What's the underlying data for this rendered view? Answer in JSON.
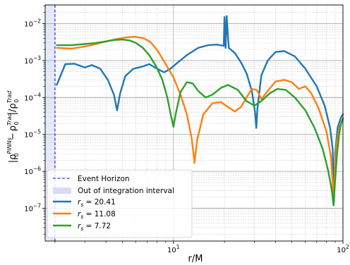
{
  "chart_data": {
    "type": "line",
    "xlabel": "r/M",
    "ylabel": "|ρ0PINNs − ρ0Trad|/ρ0Trad",
    "ylabel_parts": {
      "rho": "ρ",
      "sub": "0",
      "sup_pinn": "PINNs",
      "sup_trad": "Trad",
      "minus": "−"
    },
    "x_scale": "log",
    "y_scale": "log",
    "xlim": [
      1.75,
      100
    ],
    "ylim": [
      1.3e-08,
      0.032
    ],
    "grid": true,
    "legend_position": "lower-left",
    "x_ticks": [
      {
        "value": 10,
        "base": "10",
        "exp": "1"
      },
      {
        "value": 100,
        "base": "10",
        "exp": "2"
      }
    ],
    "y_ticks": [
      {
        "value": 1e-07,
        "base": "10",
        "exp": "−7"
      },
      {
        "value": 1e-06,
        "base": "10",
        "exp": "−6"
      },
      {
        "value": 1e-05,
        "base": "10",
        "exp": "−5"
      },
      {
        "value": 0.0001,
        "base": "10",
        "exp": "−4"
      },
      {
        "value": 0.001,
        "base": "10",
        "exp": "−3"
      },
      {
        "value": 0.01,
        "base": "10",
        "exp": "−2"
      }
    ],
    "event_horizon": {
      "x": 2.0,
      "label": "Event Horizon",
      "color": "#0000ff"
    },
    "integration_band": {
      "label": "Out of integration interval",
      "color": "#d6dcf5"
    },
    "series": [
      {
        "name": "20.41",
        "legend_prefix": "r",
        "legend_sub": "s",
        "legend_eq": " = ",
        "color": "#1f77b4",
        "points": [
          [
            2.05,
            0.00022
          ],
          [
            2.3,
            0.0008
          ],
          [
            2.6,
            0.00082
          ],
          [
            3.0,
            0.00065
          ],
          [
            3.3,
            0.00075
          ],
          [
            3.7,
            0.0006
          ],
          [
            4.1,
            0.0003
          ],
          [
            4.45,
            0.00012
          ],
          [
            4.65,
            4.5e-05
          ],
          [
            4.85,
            0.00013
          ],
          [
            5.2,
            0.00038
          ],
          [
            5.8,
            0.0006
          ],
          [
            6.5,
            0.00068
          ],
          [
            7.2,
            0.0008
          ],
          [
            8.0,
            0.0006
          ],
          [
            8.8,
            0.00048
          ],
          [
            9.5,
            0.00058
          ],
          [
            10.5,
            0.00085
          ],
          [
            12.0,
            0.0014
          ],
          [
            14.0,
            0.0022
          ],
          [
            16.0,
            0.0026
          ],
          [
            18.0,
            0.0027
          ],
          [
            19.8,
            0.0025
          ],
          [
            20.0,
            0.015
          ],
          [
            20.3,
            0.0022
          ],
          [
            20.6,
            0.016
          ],
          [
            21.2,
            0.0022
          ],
          [
            23.0,
            0.0016
          ],
          [
            25.0,
            0.0009
          ],
          [
            27.0,
            0.00045
          ],
          [
            29.0,
            0.00015
          ],
          [
            30.3,
            4e-05
          ],
          [
            30.8,
            1.5e-05
          ],
          [
            31.3,
            5e-05
          ],
          [
            33.0,
            0.0004
          ],
          [
            36.0,
            0.001
          ],
          [
            40.0,
            0.0017
          ],
          [
            45.0,
            0.0018
          ],
          [
            52.0,
            0.0013
          ],
          [
            60.0,
            0.0006
          ],
          [
            70.0,
            0.0002
          ],
          [
            78.0,
            6e-05
          ],
          [
            84.0,
            1.5e-05
          ],
          [
            87.0,
            4e-06
          ],
          [
            88.5,
            1.5e-07
          ],
          [
            90.0,
            3e-06
          ],
          [
            93.0,
            1.5e-05
          ],
          [
            97.0,
            2.8e-05
          ],
          [
            100.0,
            3.5e-05
          ]
        ]
      },
      {
        "name": "11.08",
        "legend_prefix": "r",
        "legend_sub": "s",
        "legend_eq": " = ",
        "color": "#ff7f0e",
        "points": [
          [
            2.05,
            0.0022
          ],
          [
            2.5,
            0.0021
          ],
          [
            3.0,
            0.0024
          ],
          [
            3.5,
            0.0028
          ],
          [
            4.0,
            0.0033
          ],
          [
            4.6,
            0.0038
          ],
          [
            5.2,
            0.0042
          ],
          [
            5.9,
            0.0044
          ],
          [
            6.6,
            0.0041
          ],
          [
            7.3,
            0.0032
          ],
          [
            8.1,
            0.0018
          ],
          [
            9.0,
            0.0008
          ],
          [
            10.0,
            0.00035
          ],
          [
            11.0,
            0.00012
          ],
          [
            12.0,
            3.5e-05
          ],
          [
            12.8,
            8e-06
          ],
          [
            13.3,
            1.7e-06
          ],
          [
            13.8,
            7e-06
          ],
          [
            15.0,
            3.5e-05
          ],
          [
            17.0,
            7e-05
          ],
          [
            19.0,
            7.5e-05
          ],
          [
            21.0,
            5.5e-05
          ],
          [
            23.0,
            4.2e-05
          ],
          [
            25.0,
            5.5e-05
          ],
          [
            27.0,
            0.0001
          ],
          [
            29.0,
            0.00017
          ],
          [
            31.0,
            0.00016
          ],
          [
            33.0,
            9e-05
          ],
          [
            36.0,
            0.00015
          ],
          [
            40.0,
            0.00027
          ],
          [
            45.0,
            0.0003
          ],
          [
            50.0,
            0.00026
          ],
          [
            55.0,
            0.00017
          ],
          [
            60.0,
            0.0002
          ],
          [
            65.0,
            0.00013
          ],
          [
            72.0,
            5e-05
          ],
          [
            80.0,
            1.2e-05
          ],
          [
            85.0,
            2.5e-06
          ],
          [
            88.0,
            2e-07
          ],
          [
            90.0,
            1.5e-06
          ],
          [
            92.0,
            6e-06
          ],
          [
            95.0,
            1.5e-05
          ],
          [
            100.0,
            2.5e-05
          ]
        ]
      },
      {
        "name": "7.72",
        "legend_prefix": "r",
        "legend_sub": "s",
        "legend_eq": " = ",
        "color": "#2ca02c",
        "points": [
          [
            2.05,
            0.0026
          ],
          [
            2.5,
            0.0026
          ],
          [
            3.0,
            0.0028
          ],
          [
            3.5,
            0.003
          ],
          [
            4.0,
            0.0033
          ],
          [
            4.5,
            0.0036
          ],
          [
            5.0,
            0.0037
          ],
          [
            5.5,
            0.0035
          ],
          [
            6.0,
            0.003
          ],
          [
            6.6,
            0.0022
          ],
          [
            7.2,
            0.0014
          ],
          [
            7.9,
            0.0007
          ],
          [
            8.6,
            0.0003
          ],
          [
            9.2,
            0.0001
          ],
          [
            9.7,
            3e-05
          ],
          [
            10.0,
            1.6e-05
          ],
          [
            10.3,
            3.5e-05
          ],
          [
            11.0,
            0.00014
          ],
          [
            12.0,
            0.00026
          ],
          [
            13.0,
            0.00024
          ],
          [
            14.0,
            0.00015
          ],
          [
            15.5,
            0.0001
          ],
          [
            17.0,
            0.00012
          ],
          [
            19.0,
            0.00018
          ],
          [
            21.0,
            0.00022
          ],
          [
            24.0,
            0.00016
          ],
          [
            27.0,
            8e-05
          ],
          [
            30.0,
            6e-05
          ],
          [
            33.0,
            8e-05
          ],
          [
            37.0,
            0.00013
          ],
          [
            41.0,
            0.00017
          ],
          [
            46.0,
            0.00016
          ],
          [
            52.0,
            0.0001
          ],
          [
            60.0,
            4.5e-05
          ],
          [
            68.0,
            1.5e-05
          ],
          [
            76.0,
            4e-06
          ],
          [
            82.0,
            1e-06
          ],
          [
            86.0,
            3e-07
          ],
          [
            88.0,
            1.2e-07
          ],
          [
            89.5,
            4e-07
          ],
          [
            92.0,
            2.5e-06
          ],
          [
            95.0,
            1e-05
          ],
          [
            98.0,
            2.2e-05
          ],
          [
            100.0,
            2.7e-05
          ]
        ]
      }
    ]
  }
}
